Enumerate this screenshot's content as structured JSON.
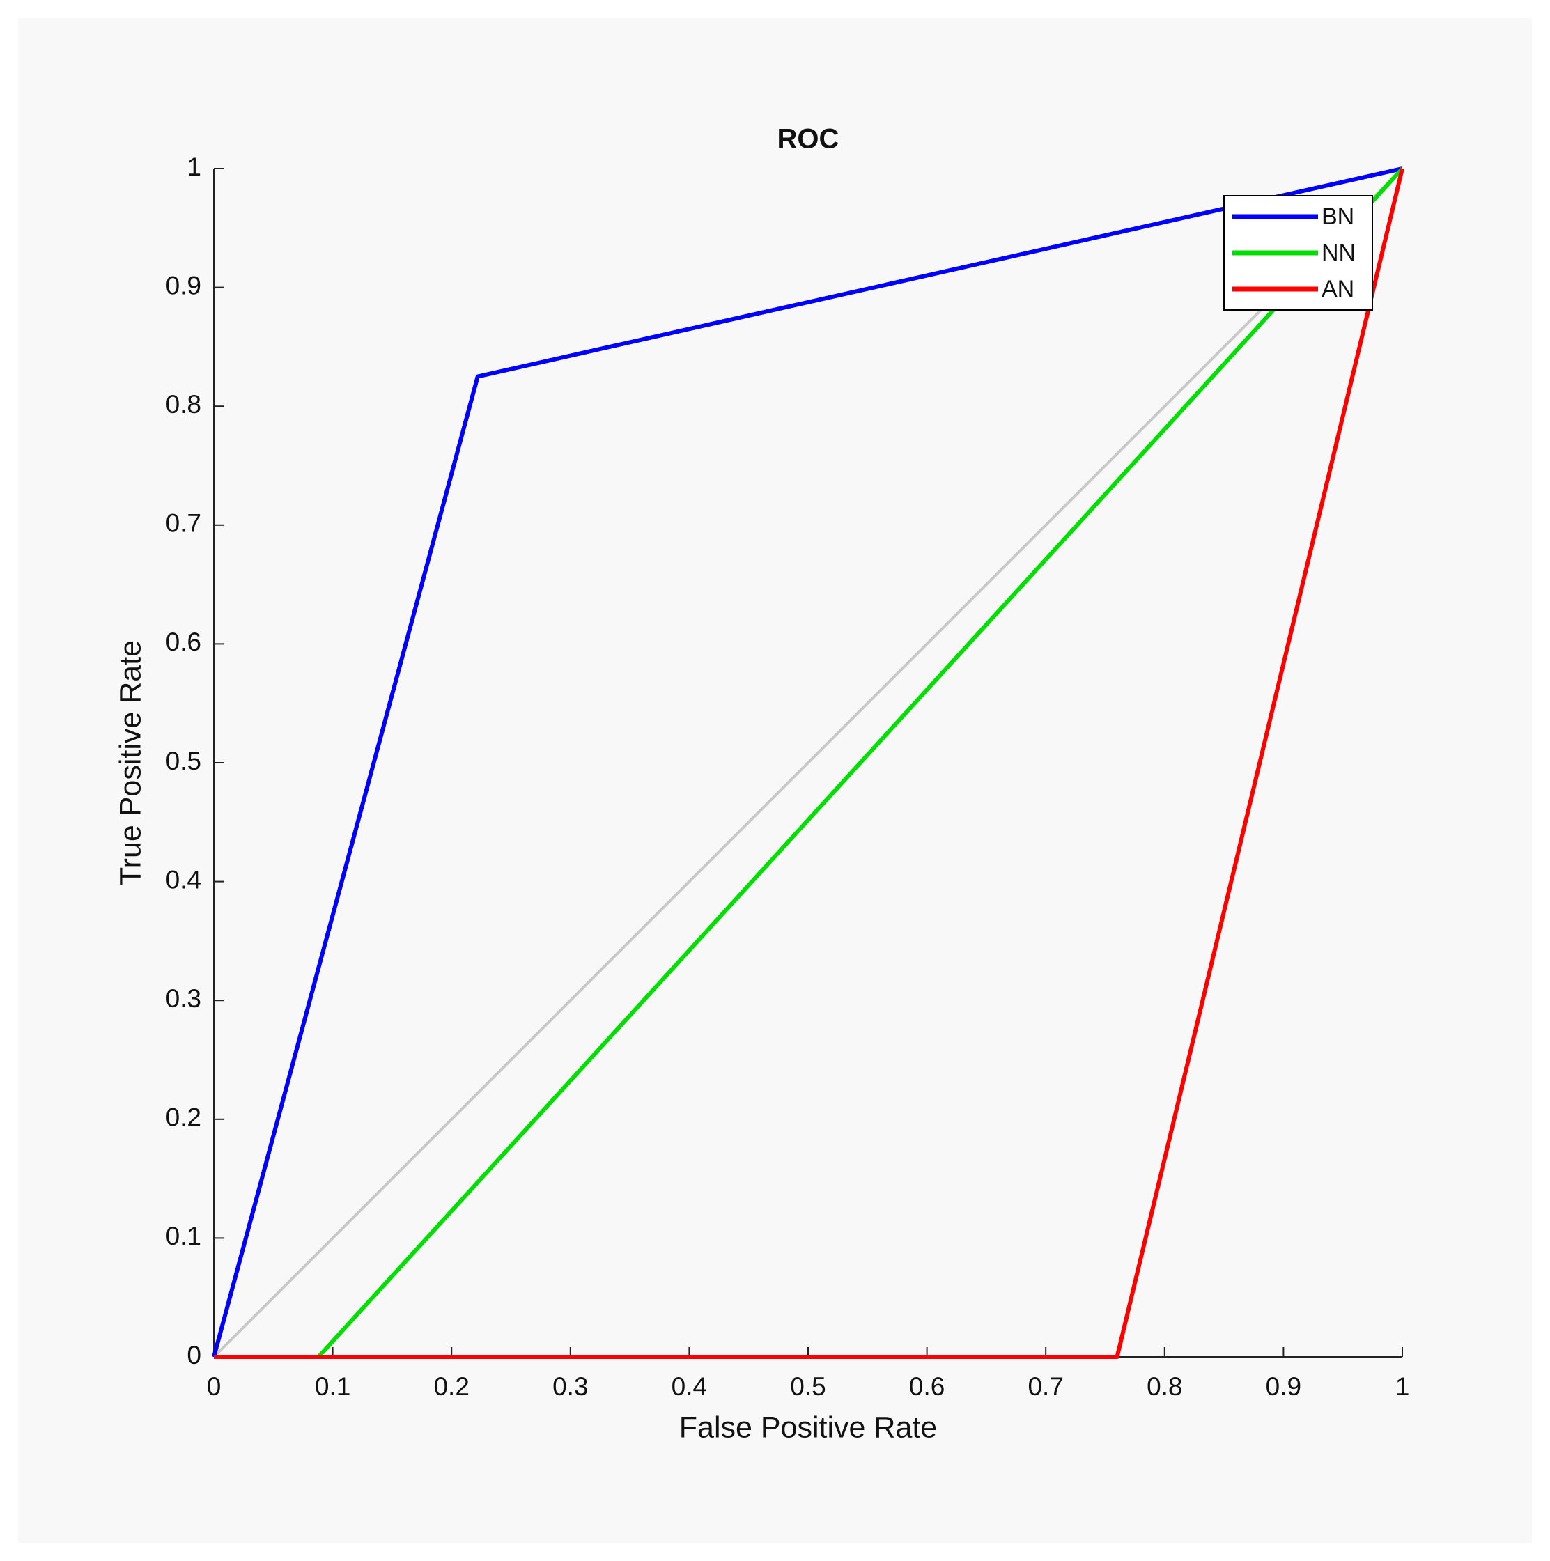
{
  "chart_data": {
    "type": "line",
    "title": "ROC",
    "x_label": "False Positive Rate",
    "y_label": "True Positive Rate",
    "series": [
      {
        "name": "BN",
        "color": "#0000ff",
        "x": [
          0,
          0.222,
          1
        ],
        "values": [
          0,
          0.825,
          1
        ]
      },
      {
        "name": "NN",
        "color": "#00e000",
        "x": [
          0,
          0.088,
          1
        ],
        "values": [
          0,
          0,
          1
        ]
      },
      {
        "name": "AN",
        "color": "#ff0000",
        "x": [
          0,
          0.76,
          1
        ],
        "values": [
          0,
          0,
          1
        ]
      }
    ],
    "xlim": [
      0,
      1
    ],
    "ylim": [
      0,
      1
    ],
    "xticks": [
      0,
      0.1,
      0.2,
      0.3,
      0.4,
      0.5,
      0.6,
      0.7,
      0.8,
      0.9,
      1
    ],
    "yticks": [
      0,
      0.1,
      0.2,
      0.3,
      0.4,
      0.5,
      0.6,
      0.7,
      0.8,
      0.9,
      1
    ],
    "legend": "top-right",
    "grid": false
  }
}
